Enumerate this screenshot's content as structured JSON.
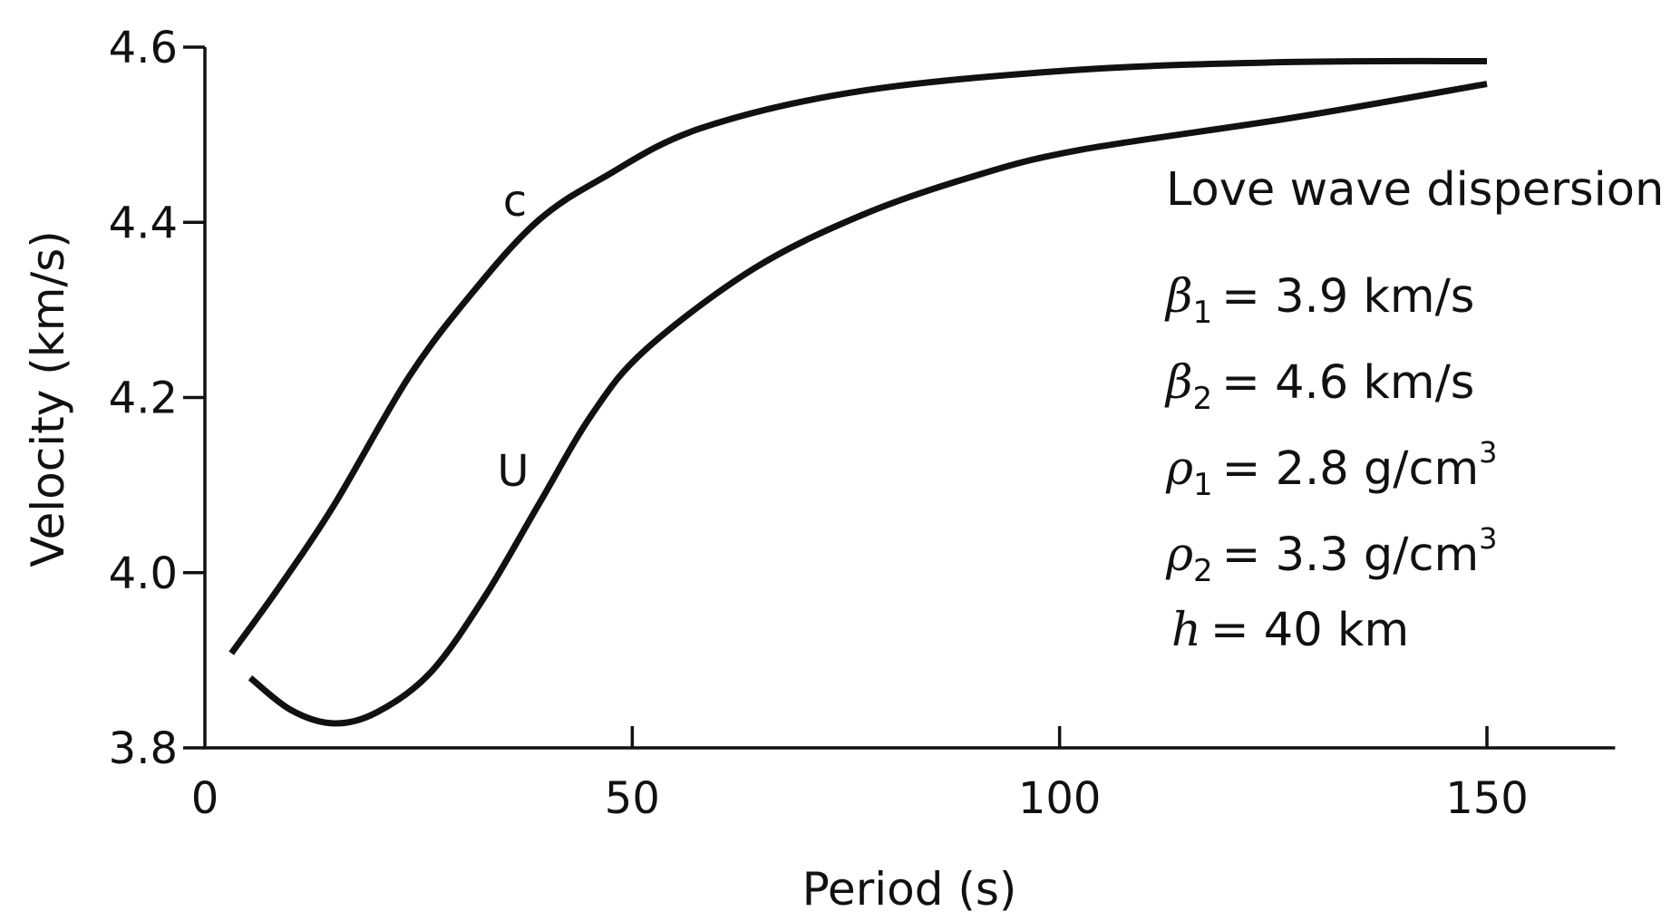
{
  "chart_data": {
    "type": "line",
    "title": "",
    "xlabel": "Period (s)",
    "ylabel": "Velocity (km/s)",
    "xlim": [
      0,
      165
    ],
    "ylim": [
      3.8,
      4.6
    ],
    "x_ticks": [
      0,
      50,
      100,
      150
    ],
    "x_tick_labels": [
      "0",
      "50",
      "100",
      "150"
    ],
    "y_ticks": [
      3.8,
      4.0,
      4.2,
      4.4,
      4.6
    ],
    "y_tick_labels": [
      "3.8",
      "4.0",
      "4.2",
      "4.4",
      "4.6"
    ],
    "grid": false,
    "line_color": "#111111",
    "series": [
      {
        "name": "c",
        "x": [
          3.1,
          8.8,
          15.1,
          23.9,
          31.5,
          39,
          46.6,
          57.9,
          76.8,
          102,
          127,
          150
        ],
        "y": [
          3.908,
          3.985,
          4.077,
          4.224,
          4.322,
          4.402,
          4.451,
          4.507,
          4.55,
          4.574,
          4.583,
          4.584
        ]
      },
      {
        "name": "U",
        "x": [
          5.3,
          10.1,
          15.1,
          20.2,
          26.4,
          32.7,
          39,
          45.3,
          51.6,
          64.2,
          76.8,
          89.4,
          102,
          127,
          150
        ],
        "y": [
          3.88,
          3.843,
          3.828,
          3.841,
          3.886,
          3.972,
          4.077,
          4.181,
          4.255,
          4.347,
          4.408,
          4.451,
          4.482,
          4.519,
          4.558
        ]
      }
    ],
    "annotation": {
      "title": "Love wave dispersion",
      "params": [
        {
          "symbol": "β",
          "sub": "1",
          "value": "= 3.9 km/s",
          "sup": ""
        },
        {
          "symbol": "β",
          "sub": "2",
          "value": "= 4.6 km/s",
          "sup": ""
        },
        {
          "symbol": "ρ",
          "sub": "1",
          "value": "= 2.8 g/cm",
          "sup": "3"
        },
        {
          "symbol": "ρ",
          "sub": "2",
          "value": "= 3.3 g/cm",
          "sup": "3"
        },
        {
          "symbol": "h",
          "sub": "",
          "value": "= 40 km",
          "sup": ""
        }
      ]
    }
  }
}
